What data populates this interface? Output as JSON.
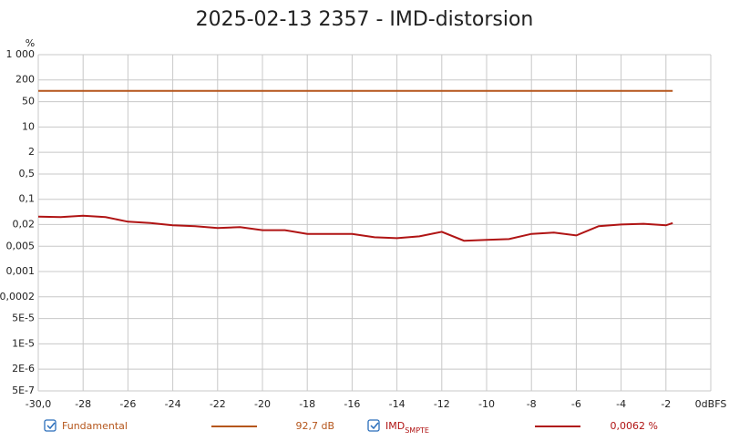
{
  "chart_data": {
    "type": "line",
    "title": "2025-02-13 2357 - IMD-distorsion",
    "y_unit": "%",
    "log_y": true,
    "grid": true,
    "xlim": [
      -30,
      0
    ],
    "ylim": [
      5e-07,
      1000
    ],
    "xticks": [
      {
        "value": -30,
        "label": "-30,0"
      },
      -28,
      -26,
      -24,
      -22,
      -20,
      -18,
      -16,
      -14,
      -12,
      -10,
      -8,
      -6,
      -4,
      -2,
      {
        "value": 0,
        "label": "0dBFS"
      }
    ],
    "yticks": [
      {
        "value": 1000,
        "label": "1 000"
      },
      200,
      50,
      10,
      2,
      {
        "value": 0.5,
        "label": "0,5"
      },
      {
        "value": 0.1,
        "label": "0,1"
      },
      {
        "value": 0.02,
        "label": "0,02"
      },
      {
        "value": 0.005,
        "label": "0,005"
      },
      {
        "value": 0.001,
        "label": "0,001"
      },
      {
        "value": 0.0002,
        "label": "0,0002"
      },
      {
        "value": 5e-05,
        "label": "5E-5"
      },
      {
        "value": 1e-05,
        "label": "1E-5"
      },
      {
        "value": 2e-06,
        "label": "2E-6"
      },
      {
        "value": 5e-07,
        "label": "5E-7"
      }
    ],
    "series": [
      {
        "name": "Fundamental",
        "readout": "92,7 dB",
        "color": "#b5561c",
        "x": [
          -30,
          -1.7
        ],
        "values": [
          100,
          100
        ]
      },
      {
        "name": "IMD",
        "name_subscript": "SMPTE",
        "readout": "0,0062 %",
        "color": "#b01414",
        "x": [
          -30,
          -29,
          -28,
          -27,
          -26,
          -25,
          -24,
          -23,
          -22,
          -21,
          -20,
          -19,
          -18,
          -17,
          -16,
          -15,
          -14,
          -13,
          -12,
          -11,
          -10,
          -9,
          -8,
          -7,
          -6,
          -5,
          -4,
          -3,
          -2,
          -1.7
        ],
        "values": [
          0.033,
          0.032,
          0.035,
          0.032,
          0.024,
          0.022,
          0.019,
          0.018,
          0.016,
          0.017,
          0.014,
          0.014,
          0.011,
          0.011,
          0.011,
          0.0089,
          0.0084,
          0.0094,
          0.0126,
          0.0071,
          0.0075,
          0.0079,
          0.011,
          0.012,
          0.01,
          0.018,
          0.02,
          0.021,
          0.019,
          0.022
        ]
      }
    ]
  }
}
